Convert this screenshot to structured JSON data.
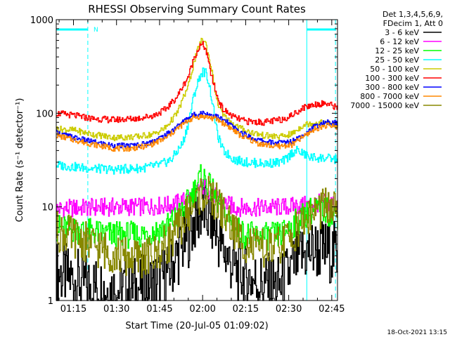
{
  "chart_data": {
    "type": "line",
    "title": "RHESSI Observing Summary Count Rates",
    "xlabel": "Start Time (20-Jul-05 01:09:02)",
    "ylabel": "Count Rate (s⁻¹ detector⁻¹)",
    "x_unit": "minutes since 01:09:02",
    "xlim": [
      0,
      98
    ],
    "ylim": [
      1,
      1000
    ],
    "y_scale": "log",
    "x_ticks": [
      {
        "x": 6,
        "label": "01:15"
      },
      {
        "x": 21,
        "label": "01:30"
      },
      {
        "x": 36,
        "label": "01:45"
      },
      {
        "x": 51,
        "label": "02:00"
      },
      {
        "x": 66,
        "label": "02:15"
      },
      {
        "x": 81,
        "label": "02:30"
      },
      {
        "x": 96,
        "label": "02:45"
      }
    ],
    "y_ticks": [
      {
        "y": 1,
        "label": "1"
      },
      {
        "y": 10,
        "label": "10"
      },
      {
        "y": 100,
        "label": "100"
      },
      {
        "y": 1000,
        "label": "1000"
      }
    ],
    "legend": {
      "position": "right",
      "header": [
        "Det 1,3,4,5,6,9,",
        "FDecim 1, Att 0"
      ]
    },
    "series": [
      {
        "name": "3 - 6 keV",
        "color": "#000000",
        "x": [
          0,
          10,
          20,
          30,
          38,
          42,
          46,
          48,
          50,
          51,
          52,
          54,
          56,
          58,
          62,
          66,
          72,
          78,
          85,
          90,
          98
        ],
        "y": [
          2,
          1.5,
          1.3,
          1.4,
          1.8,
          3,
          5,
          7,
          8.5,
          9,
          8.5,
          7,
          5,
          3.5,
          2.2,
          1.8,
          1.5,
          1.4,
          3,
          3.5,
          3.2
        ]
      },
      {
        "name": "6 - 12 keV",
        "color": "#ff00ff",
        "x": [
          0,
          10,
          20,
          30,
          40,
          46,
          48,
          50,
          51,
          52,
          54,
          58,
          62,
          66,
          72,
          80,
          88,
          92,
          98
        ],
        "y": [
          9.5,
          9.8,
          10,
          10,
          10.5,
          12,
          14,
          16,
          16.5,
          16,
          14,
          11,
          10,
          9.8,
          9.8,
          10,
          10.5,
          11,
          11
        ]
      },
      {
        "name": "12 - 25 keV",
        "color": "#00ff00",
        "x": [
          0,
          10,
          20,
          30,
          38,
          44,
          48,
          50,
          51,
          52,
          54,
          58,
          62,
          66,
          72,
          78,
          84,
          88,
          92,
          98
        ],
        "y": [
          6,
          5.5,
          5,
          5,
          6,
          9,
          15,
          20,
          21,
          19,
          15,
          9,
          6,
          5,
          4.8,
          5,
          7,
          9,
          9.5,
          8
        ]
      },
      {
        "name": "25 - 50 keV",
        "color": "#00ffff",
        "x": [
          0,
          10,
          20,
          30,
          36,
          40,
          44,
          46,
          48,
          50,
          51,
          52,
          53,
          54,
          56,
          58,
          62,
          66,
          72,
          78,
          80,
          82,
          84,
          88,
          94,
          98
        ],
        "y": [
          28,
          26,
          25,
          26,
          28,
          32,
          48,
          80,
          160,
          250,
          280,
          270,
          220,
          150,
          60,
          40,
          32,
          30,
          29,
          30,
          32,
          38,
          40,
          34,
          33,
          32
        ]
      },
      {
        "name": "50 - 100 keV",
        "color": "#cccc00",
        "x": [
          0,
          6,
          12,
          20,
          28,
          34,
          38,
          42,
          46,
          48,
          50,
          51,
          52,
          54,
          56,
          58,
          62,
          66,
          72,
          78,
          82,
          86,
          90,
          94,
          98
        ],
        "y": [
          68,
          66,
          60,
          55,
          56,
          60,
          70,
          100,
          200,
          360,
          560,
          620,
          560,
          300,
          130,
          95,
          75,
          65,
          58,
          56,
          60,
          75,
          80,
          78,
          76
        ]
      },
      {
        "name": "100 - 300 keV",
        "color": "#ff0000",
        "x": [
          0,
          6,
          12,
          20,
          28,
          34,
          38,
          42,
          46,
          48,
          50,
          51,
          52,
          54,
          56,
          58,
          62,
          66,
          72,
          78,
          82,
          86,
          90,
          94,
          98
        ],
        "y": [
          100,
          95,
          88,
          85,
          88,
          95,
          110,
          150,
          250,
          400,
          520,
          540,
          480,
          250,
          150,
          110,
          90,
          82,
          80,
          85,
          95,
          115,
          125,
          128,
          115
        ]
      },
      {
        "name": "300 - 800 keV",
        "color": "#0000ff",
        "x": [
          0,
          6,
          12,
          20,
          26,
          32,
          38,
          42,
          46,
          48,
          50,
          52,
          56,
          60,
          64,
          70,
          76,
          82,
          86,
          90,
          94,
          98
        ],
        "y": [
          62,
          55,
          50,
          45,
          45,
          48,
          58,
          72,
          90,
          96,
          100,
          100,
          92,
          78,
          62,
          52,
          48,
          50,
          60,
          72,
          80,
          78
        ]
      },
      {
        "name": "800 - 7000 keV",
        "color": "#ff8800",
        "x": [
          0,
          6,
          12,
          20,
          26,
          32,
          38,
          42,
          46,
          48,
          50,
          52,
          56,
          60,
          64,
          70,
          76,
          82,
          86,
          90,
          94,
          98
        ],
        "y": [
          58,
          52,
          47,
          42,
          42,
          45,
          54,
          68,
          84,
          90,
          92,
          92,
          86,
          72,
          58,
          48,
          44,
          46,
          56,
          68,
          74,
          72
        ]
      },
      {
        "name": "7000 - 15000 keV",
        "color": "#888800",
        "x": [
          0,
          8,
          16,
          22,
          28,
          34,
          40,
          44,
          48,
          50,
          51,
          52,
          56,
          60,
          64,
          70,
          76,
          82,
          86,
          90,
          94,
          98
        ],
        "y": [
          5.5,
          4.5,
          3.5,
          3,
          2.8,
          3,
          4.5,
          7,
          11,
          13.5,
          14,
          13.5,
          11,
          7,
          4.5,
          3.5,
          3.5,
          5,
          7,
          9,
          10,
          9
        ]
      }
    ],
    "annotations": [
      {
        "text": "N",
        "x": 13
      }
    ],
    "vertical_markers_x": [
      0,
      11,
      87.3,
      97.3
    ],
    "night_spans": [
      [
        0,
        11
      ],
      [
        87.3,
        97.3
      ]
    ],
    "timestamp": "18-Oct-2021 13:15"
  }
}
